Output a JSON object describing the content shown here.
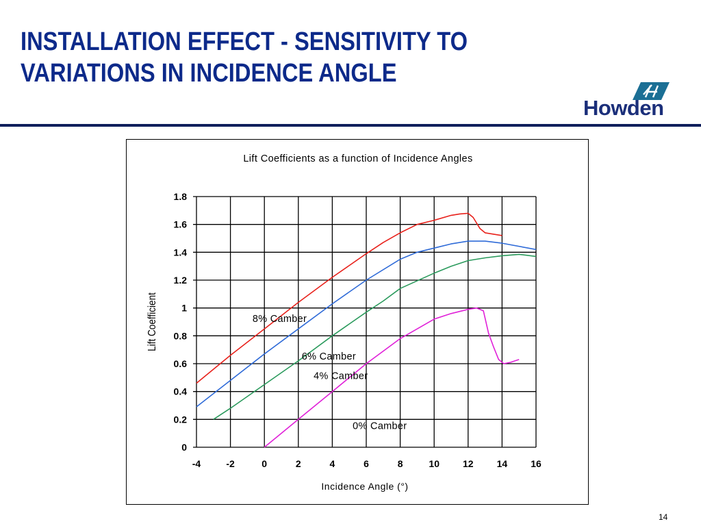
{
  "slide": {
    "title_lines": [
      "INSTALLATION EFFECT - SENSITIVITY TO",
      "VARIATIONS IN INCIDENCE ANGLE"
    ],
    "logo_text": "Howden",
    "page_number": "14"
  },
  "colors": {
    "title": "#0d2a8a",
    "rule": "#0d1f5c",
    "logo": "#1b2f7a"
  },
  "chart_data": {
    "type": "line",
    "title": "Lift Coefficients as a function of Incidence Angles",
    "xlabel": "Incidence Angle (°)",
    "ylabel": "Lift Coefficient",
    "xlim": [
      -4,
      16
    ],
    "ylim": [
      0,
      1.8
    ],
    "xticks": [
      "-4",
      "-2",
      "0",
      "2",
      "4",
      "6",
      "8",
      "10",
      "12",
      "14",
      "16"
    ],
    "yticks": [
      "0",
      "0.2",
      "0.4",
      "0.6",
      "0.8",
      "1",
      "1.2",
      "1.4",
      "1.6",
      "1.8"
    ],
    "grid": true,
    "series": [
      {
        "name": "8% Camber",
        "color": "#e8211b",
        "x": [
          -4,
          -2,
          0,
          2,
          4,
          6,
          7,
          8,
          9,
          10,
          11,
          11.5,
          12,
          12.3,
          12.7,
          13,
          13.5,
          14
        ],
        "y": [
          0.46,
          0.66,
          0.85,
          1.04,
          1.22,
          1.39,
          1.47,
          1.54,
          1.6,
          1.63,
          1.665,
          1.675,
          1.68,
          1.65,
          1.57,
          1.54,
          1.53,
          1.52
        ]
      },
      {
        "name": "6% Camber",
        "color": "#2f6bd8",
        "x": [
          -4,
          -2,
          0,
          2,
          4,
          6,
          8,
          9,
          10,
          11,
          12,
          13,
          14,
          16
        ],
        "y": [
          0.29,
          0.48,
          0.67,
          0.85,
          1.03,
          1.2,
          1.35,
          1.4,
          1.43,
          1.46,
          1.48,
          1.48,
          1.465,
          1.42
        ]
      },
      {
        "name": "4% Camber",
        "color": "#2a9a5c",
        "x": [
          -3,
          -2,
          0,
          2,
          4,
          6,
          7,
          8,
          10,
          11,
          12,
          13,
          14,
          15,
          16
        ],
        "y": [
          0.2,
          0.28,
          0.45,
          0.62,
          0.8,
          0.97,
          1.05,
          1.14,
          1.25,
          1.3,
          1.34,
          1.36,
          1.375,
          1.385,
          1.37
        ]
      },
      {
        "name": "0% Camber",
        "color": "#e020d8",
        "x": [
          0,
          2,
          4,
          6,
          8,
          9,
          10,
          11,
          12,
          12.5,
          12.9,
          13.2,
          13.5,
          13.8,
          14.1,
          14.5,
          15
        ],
        "y": [
          0,
          0.2,
          0.4,
          0.6,
          0.78,
          0.85,
          0.92,
          0.96,
          0.99,
          1.0,
          0.98,
          0.82,
          0.72,
          0.63,
          0.6,
          0.61,
          0.63
        ]
      }
    ],
    "labels": [
      {
        "text": "8% Camber",
        "x": -0.7,
        "y": 0.9
      },
      {
        "text": "6% Camber",
        "x": 2.2,
        "y": 0.63
      },
      {
        "text": "4% Camber",
        "x": 2.9,
        "y": 0.49
      },
      {
        "text": "0% Camber",
        "x": 5.2,
        "y": 0.13
      }
    ]
  }
}
